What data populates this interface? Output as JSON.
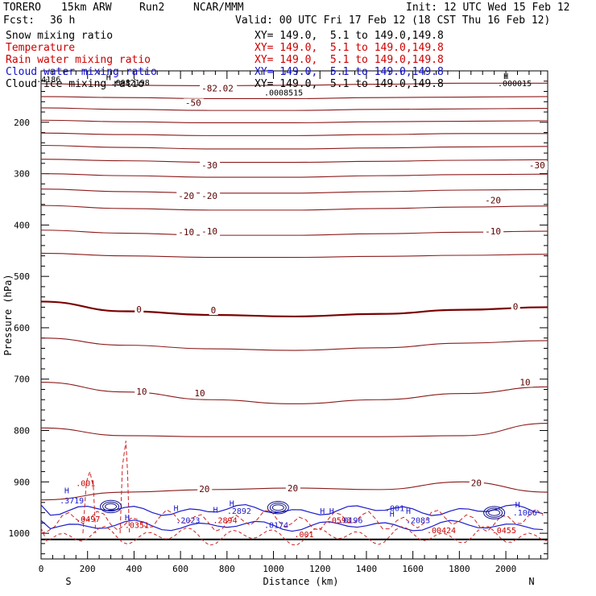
{
  "header": {
    "model": "TORERO",
    "resolution": "15km ARW",
    "run": "Run2",
    "center": "NCAR/MMM",
    "init": "Init: 12 UTC Wed 15 Feb 12",
    "fcst_label": "Fcst:",
    "fcst_value": "36 h",
    "valid": "Valid: 00 UTC Fri 17 Feb 12 (18 CST Thu 16 Feb 12)"
  },
  "fields": [
    {
      "label": "Snow mixing ratio",
      "xy": "XY= 149.0,  5.1 to 149.0,149.8",
      "color": "#000000"
    },
    {
      "label": "Temperature",
      "xy": "XY= 149.0,  5.1 to 149.0,149.8",
      "color": "#cc0000"
    },
    {
      "label": "Rain water mixing ratio",
      "xy": "XY= 149.0,  5.1 to 149.0,149.8",
      "color": "#cc0000"
    },
    {
      "label": "Cloud water mixing ratio",
      "xy": "XY= 149.0,  5.1 to 149.0,149.8",
      "color": "#1010cc"
    },
    {
      "label": "Cloud ice mixing ratio",
      "xy": "XY= 149.0,  5.1 to 149.0,149.8",
      "color": "#000000"
    }
  ],
  "chart_data": {
    "type": "contour",
    "xlabel": "Distance (km)",
    "ylabel": "Pressure (hPa)",
    "xlim": [
      0,
      2180
    ],
    "ylim": [
      1050,
      100
    ],
    "x_ticks": [
      0,
      200,
      400,
      600,
      800,
      1000,
      1200,
      1400,
      1600,
      1800,
      2000
    ],
    "y_ticks": [
      200,
      300,
      400,
      500,
      600,
      700,
      800,
      900,
      1000
    ],
    "x_minor_step": 50,
    "y_minor_step": 20,
    "left_end_label": "S",
    "right_end_label": "N",
    "surface_pressure": 1012,
    "temperature_isotherms": [
      {
        "temp": -60,
        "p": [
          125,
          128,
          129,
          128,
          126,
          124,
          124
        ]
      },
      {
        "temp": -55,
        "p": [
          150,
          152,
          154,
          154,
          152,
          151,
          150
        ]
      },
      {
        "temp": -50,
        "p": [
          172,
          175,
          177,
          177,
          175,
          174,
          173
        ]
      },
      {
        "temp": -45,
        "p": [
          196,
          199,
          201,
          201,
          199,
          198,
          197
        ]
      },
      {
        "temp": -40,
        "p": [
          221,
          224,
          226,
          226,
          224,
          222,
          222
        ]
      },
      {
        "temp": -35,
        "p": [
          245,
          249,
          252,
          252,
          250,
          248,
          247
        ]
      },
      {
        "temp": -30,
        "p": [
          272,
          275,
          278,
          278,
          276,
          274,
          273
        ]
      },
      {
        "temp": -25,
        "p": [
          300,
          304,
          307,
          307,
          304,
          302,
          301
        ]
      },
      {
        "temp": -20,
        "p": [
          330,
          335,
          338,
          338,
          335,
          332,
          331
        ]
      },
      {
        "temp": -15,
        "p": [
          362,
          368,
          371,
          371,
          368,
          365,
          363
        ]
      },
      {
        "temp": -10,
        "p": [
          410,
          416,
          420,
          420,
          417,
          414,
          412
        ]
      },
      {
        "temp": -5,
        "p": [
          455,
          460,
          463,
          463,
          461,
          459,
          457
        ]
      },
      {
        "temp": 0,
        "p": [
          549,
          568,
          575,
          578,
          573,
          565,
          560
        ]
      },
      {
        "temp": 5,
        "p": [
          620,
          634,
          641,
          644,
          639,
          630,
          625
        ]
      },
      {
        "temp": 10,
        "p": [
          706,
          725,
          740,
          748,
          740,
          728,
          715
        ]
      },
      {
        "temp": 15,
        "p": [
          795,
          810,
          812,
          812,
          812,
          810,
          786
        ]
      },
      {
        "temp": 20,
        "p": [
          935,
          920,
          915,
          912,
          915,
          900,
          920
        ]
      }
    ],
    "temperature_labels": [
      {
        "text": "-82.02",
        "x": 690,
        "p": 140
      },
      {
        "text": "-50",
        "x": 620,
        "p": 168
      },
      {
        "text": "-30",
        "x": 690,
        "p": 290
      },
      {
        "text": "-30",
        "x": 2100,
        "p": 290
      },
      {
        "text": "-20",
        "x": 590,
        "p": 349
      },
      {
        "text": "-20",
        "x": 690,
        "p": 349
      },
      {
        "text": "-20",
        "x": 1910,
        "p": 358
      },
      {
        "text": "-10",
        "x": 590,
        "p": 420
      },
      {
        "text": "-10",
        "x": 690,
        "p": 418
      },
      {
        "text": "-10",
        "x": 1910,
        "p": 418
      },
      {
        "text": "0",
        "x": 410,
        "p": 570
      },
      {
        "text": "0",
        "x": 730,
        "p": 572
      },
      {
        "text": "0",
        "x": 2030,
        "p": 565
      },
      {
        "text": "10",
        "x": 410,
        "p": 730
      },
      {
        "text": "10",
        "x": 660,
        "p": 733
      },
      {
        "text": "10",
        "x": 2060,
        "p": 712
      },
      {
        "text": "20",
        "x": 680,
        "p": 920
      },
      {
        "text": "20",
        "x": 1060,
        "p": 918
      },
      {
        "text": "20",
        "x": 1850,
        "p": 908
      }
    ],
    "ice_labels": [
      {
        "text": "H",
        "x": 280,
        "p": 118
      },
      {
        "text": ".4186",
        "x": -20,
        "p": 122
      },
      {
        "text": ".0082198",
        "x": 300,
        "p": 128
      },
      {
        "text": ".0008515",
        "x": 960,
        "p": 148
      },
      {
        "text": "H",
        "x": 1990,
        "p": 116
      },
      {
        "text": ".000015",
        "x": 1965,
        "p": 130
      }
    ],
    "rain_labels": [
      {
        "text": ".001",
        "x": 150,
        "p": 908
      },
      {
        "text": ".0497",
        "x": 150,
        "p": 978
      },
      {
        "text": ".0351",
        "x": 360,
        "p": 990
      },
      {
        "text": ".2894",
        "x": 740,
        "p": 980
      },
      {
        "text": ".0593",
        "x": 1230,
        "p": 980
      },
      {
        "text": ".001",
        "x": 1090,
        "p": 1008
      },
      {
        "text": ".00424",
        "x": 1660,
        "p": 1000
      },
      {
        "text": ".0455",
        "x": 1940,
        "p": 1000
      }
    ],
    "cloud_water_labels": [
      {
        "text": "H",
        "x": 100,
        "p": 922
      },
      {
        "text": ".3719",
        "x": 80,
        "p": 942
      },
      {
        "text": "H",
        "x": 360,
        "p": 975
      },
      {
        "text": "H",
        "x": 570,
        "p": 957
      },
      {
        "text": ".2023",
        "x": 580,
        "p": 980
      },
      {
        "text": "H",
        "x": 740,
        "p": 960
      },
      {
        "text": "H",
        "x": 810,
        "p": 947
      },
      {
        "text": ".2892",
        "x": 800,
        "p": 962
      },
      {
        "text": ".0174",
        "x": 960,
        "p": 990
      },
      {
        "text": "H",
        "x": 1200,
        "p": 962
      },
      {
        "text": "H",
        "x": 1240,
        "p": 962
      },
      {
        "text": ".0196",
        "x": 1280,
        "p": 980
      },
      {
        "text": ".001",
        "x": 1480,
        "p": 957
      },
      {
        "text": "H",
        "x": 1500,
        "p": 968
      },
      {
        "text": "H",
        "x": 1570,
        "p": 962
      },
      {
        "text": ".2083",
        "x": 1570,
        "p": 980
      },
      {
        "text": "H",
        "x": 2040,
        "p": 950
      },
      {
        "text": ".1066",
        "x": 2030,
        "p": 965
      }
    ]
  }
}
